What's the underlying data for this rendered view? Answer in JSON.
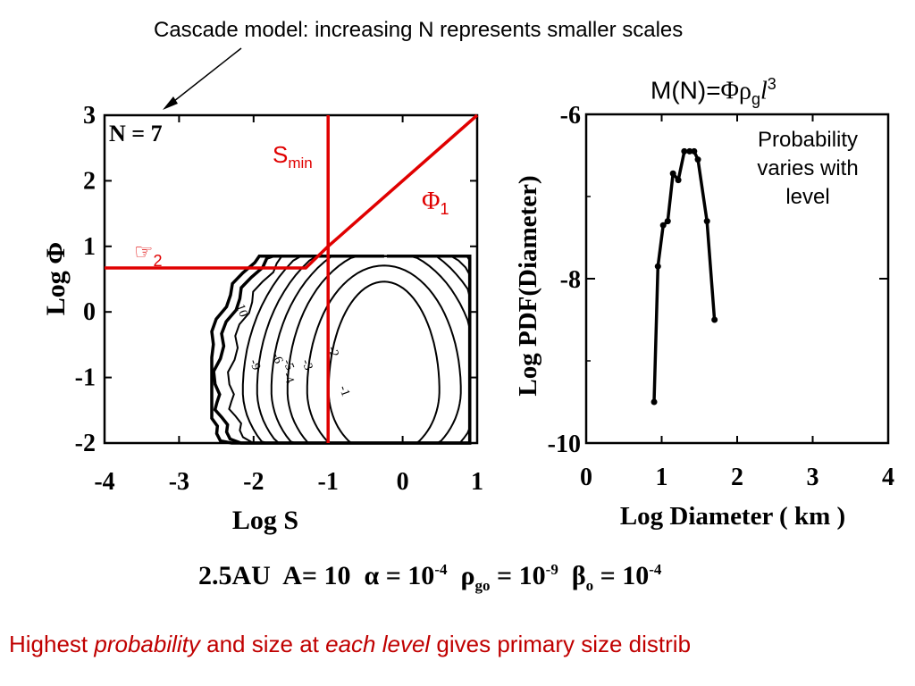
{
  "slide": {
    "top_caption": "Cascade model: increasing N represents smaller scales",
    "mass_formula": {
      "lhs": "M(N)=",
      "phi": "Φ",
      "rho": "ρ",
      "rho_sub": "g",
      "ell": "l",
      "exp": "3"
    },
    "probability_note": "Probability varies with level",
    "params": {
      "distance": "2.5AU",
      "A": "A= 10",
      "alpha_lhs": "α = 10",
      "alpha_exp": "-4",
      "rho_sym": "ρ",
      "rho_sub": "go",
      "rho_rhs": " = 10",
      "rho_exp": "-9",
      "beta_sym": "β",
      "beta_sub": "o",
      "beta_rhs": " = 10",
      "beta_exp": "-4"
    },
    "bottom_caption": {
      "p1": "Highest ",
      "p2": "probability",
      "p3": " and size at ",
      "p4": "each level",
      "p5": " gives primary size distrib"
    }
  },
  "chart_data": [
    {
      "type": "contour",
      "xlabel": "Log S",
      "ylabel": "Log Φ",
      "xlim": [
        -4,
        1
      ],
      "ylim": [
        -2,
        3
      ],
      "x_ticks": [
        "-4",
        "-3",
        "-2",
        "-1",
        "0",
        "1"
      ],
      "y_ticks": [
        "-2",
        "-1",
        "0",
        "1",
        "2",
        "3"
      ],
      "panel_label": "N =  7",
      "contour_levels": [
        "-1",
        "-2",
        "-3",
        "-4",
        "-5",
        "-6",
        "-9",
        "-10"
      ],
      "annotations": {
        "smin": {
          "text": "S",
          "sub": "min",
          "color": "#e00000"
        },
        "phi1": {
          "text": "Φ",
          "sub": "1",
          "color": "#e00000"
        },
        "phi2": {
          "text": "☞",
          "sub": "2",
          "color": "#e00000"
        }
      },
      "red_lines": {
        "smin_vertical_x": -1,
        "phi1_line": [
          [
            -1,
            1.0
          ],
          [
            1,
            3.0
          ]
        ],
        "phi2_line": [
          [
            -4,
            0.67
          ],
          [
            -1.3,
            0.67
          ],
          [
            -1,
            1.0
          ]
        ]
      },
      "line_color": "#e00000"
    },
    {
      "type": "line",
      "xlabel": "Log Diameter ( km )",
      "ylabel": "Log PDF(Diameter)",
      "xlim": [
        0,
        4
      ],
      "ylim": [
        -10,
        -6
      ],
      "x_ticks": [
        "0",
        "1",
        "2",
        "3",
        "4"
      ],
      "y_ticks": [
        "-6",
        "-8",
        "-10"
      ],
      "series": [
        {
          "x": [
            0.9,
            0.95,
            1.02,
            1.08,
            1.15,
            1.22,
            1.3,
            1.37,
            1.43,
            1.48,
            1.6,
            1.7
          ],
          "y": [
            -9.5,
            -7.85,
            -7.35,
            -7.3,
            -6.72,
            -6.8,
            -6.45,
            -6.45,
            -6.45,
            -6.55,
            -7.3,
            -8.5
          ]
        }
      ]
    }
  ]
}
